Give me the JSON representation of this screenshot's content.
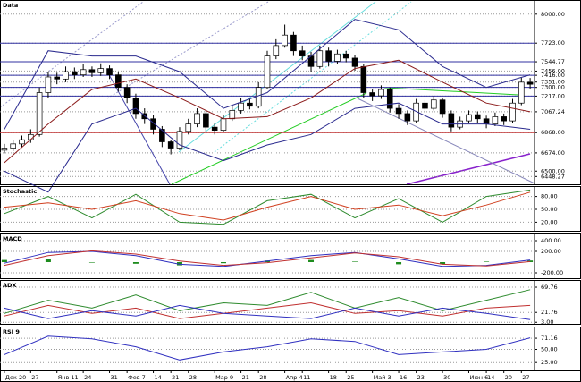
{
  "chart_data": [
    {
      "type": "candlestick",
      "title": "Data",
      "xlim": [
        -0.5,
        60.5
      ],
      "ylim": [
        6374,
        8118
      ],
      "xticks": [
        {
          "value": 0,
          "label": "Дек 20"
        },
        {
          "value": 3,
          "label": "27"
        },
        {
          "value": 6,
          "label": "Янв 11"
        },
        {
          "value": 9,
          "label": "24"
        },
        {
          "value": 12,
          "label": "31"
        },
        {
          "value": 14,
          "label": "Фев 7"
        },
        {
          "value": 17,
          "label": "14"
        },
        {
          "value": 19,
          "label": "21"
        },
        {
          "value": 21,
          "label": "28"
        },
        {
          "value": 24,
          "label": "Мар 9"
        },
        {
          "value": 27,
          "label": "21"
        },
        {
          "value": 29,
          "label": "28"
        },
        {
          "value": 32,
          "label": "Апр 4"
        },
        {
          "value": 34,
          "label": "11"
        },
        {
          "value": 37,
          "label": "18"
        },
        {
          "value": 39,
          "label": "25"
        },
        {
          "value": 42,
          "label": "Май 3"
        },
        {
          "value": 45,
          "label": "16"
        },
        {
          "value": 47,
          "label": "23"
        },
        {
          "value": 50,
          "label": "30"
        },
        {
          "value": 53,
          "label": "Июн 6"
        },
        {
          "value": 55,
          "label": "14"
        },
        {
          "value": 57,
          "label": "20"
        },
        {
          "value": 59,
          "label": "27"
        }
      ],
      "yticks": [
        {
          "value": 8000,
          "label": "8000.00"
        },
        {
          "value": 7723,
          "label": "7723.00"
        },
        {
          "value": 7544.77,
          "label": "7544.77"
        },
        {
          "value": 7456,
          "label": "7456.00"
        },
        {
          "value": 7416,
          "label": "7416.00"
        },
        {
          "value": 7351,
          "label": "7351.00"
        },
        {
          "value": 7300,
          "label": "7300.00"
        },
        {
          "value": 7217,
          "label": "7217.00"
        },
        {
          "value": 7067.24,
          "label": "7067.24"
        },
        {
          "value": 6868,
          "label": "6868.00"
        },
        {
          "value": 6674,
          "label": "6674.00"
        },
        {
          "value": 6500,
          "label": "6500.00"
        },
        {
          "value": 6448.27,
          "label": "6448.27"
        }
      ],
      "up_color": "#ffffff",
      "down_color": "#000000",
      "candles": [
        [
          6700,
          6760,
          6670,
          6720
        ],
        [
          6720,
          6800,
          6690,
          6760
        ],
        [
          6760,
          6840,
          6730,
          6800
        ],
        [
          6800,
          6900,
          6770,
          6850
        ],
        [
          6850,
          7300,
          6830,
          7250
        ],
        [
          7250,
          7450,
          7200,
          7400
        ],
        [
          7400,
          7440,
          7330,
          7380
        ],
        [
          7380,
          7500,
          7350,
          7450
        ],
        [
          7450,
          7490,
          7380,
          7420
        ],
        [
          7420,
          7520,
          7400,
          7470
        ],
        [
          7470,
          7500,
          7400,
          7440
        ],
        [
          7440,
          7530,
          7410,
          7480
        ],
        [
          7480,
          7510,
          7380,
          7420
        ],
        [
          7420,
          7450,
          7260,
          7300
        ],
        [
          7300,
          7330,
          7150,
          7200
        ],
        [
          7200,
          7240,
          7000,
          7050
        ],
        [
          7050,
          7100,
          6950,
          7000
        ],
        [
          7000,
          7040,
          6850,
          6900
        ],
        [
          6900,
          6930,
          6730,
          6780
        ],
        [
          6780,
          6800,
          6660,
          6720
        ],
        [
          6720,
          6920,
          6700,
          6880
        ],
        [
          6880,
          7000,
          6850,
          6950
        ],
        [
          6950,
          7100,
          6920,
          7050
        ],
        [
          7050,
          7080,
          6880,
          6920
        ],
        [
          6920,
          6960,
          6850,
          6890
        ],
        [
          6890,
          7040,
          6870,
          7000
        ],
        [
          7000,
          7120,
          6980,
          7080
        ],
        [
          7080,
          7200,
          7050,
          7150
        ],
        [
          7150,
          7190,
          7090,
          7120
        ],
        [
          7120,
          7350,
          7100,
          7300
        ],
        [
          7300,
          7650,
          7280,
          7600
        ],
        [
          7600,
          7760,
          7570,
          7700
        ],
        [
          7700,
          7900,
          7680,
          7800
        ],
        [
          7800,
          7830,
          7600,
          7650
        ],
        [
          7650,
          7700,
          7560,
          7600
        ],
        [
          7600,
          7640,
          7450,
          7500
        ],
        [
          7500,
          7700,
          7480,
          7650
        ],
        [
          7650,
          7680,
          7500,
          7550
        ],
        [
          7550,
          7660,
          7520,
          7620
        ],
        [
          7620,
          7650,
          7540,
          7580
        ],
        [
          7580,
          7610,
          7460,
          7500
        ],
        [
          7500,
          7520,
          7200,
          7250
        ],
        [
          7250,
          7280,
          7170,
          7220
        ],
        [
          7220,
          7320,
          7190,
          7280
        ],
        [
          7280,
          7300,
          7060,
          7100
        ],
        [
          7100,
          7140,
          7000,
          7050
        ],
        [
          7050,
          7080,
          6940,
          6980
        ],
        [
          6980,
          7190,
          6960,
          7150
        ],
        [
          7150,
          7180,
          7060,
          7100
        ],
        [
          7100,
          7220,
          7080,
          7180
        ],
        [
          7180,
          7200,
          7010,
          7050
        ],
        [
          7050,
          7080,
          6880,
          6920
        ],
        [
          6920,
          7020,
          6900,
          6980
        ],
        [
          6980,
          7080,
          6960,
          7040
        ],
        [
          7040,
          7070,
          6960,
          7000
        ],
        [
          7000,
          7030,
          6910,
          6950
        ],
        [
          6950,
          7060,
          6930,
          7020
        ],
        [
          7020,
          7050,
          6940,
          6980
        ],
        [
          6980,
          7190,
          6960,
          7150
        ],
        [
          7150,
          7400,
          7130,
          7350
        ],
        [
          7350,
          7390,
          7280,
          7330
        ]
      ],
      "x": [
        0,
        5,
        10,
        15,
        20,
        25,
        30,
        35,
        40,
        45,
        50,
        55,
        60
      ],
      "series": [
        {
          "color": "#8b1a1a",
          "values": [
            6580,
            6950,
            7280,
            7380,
            7200,
            7000,
            7020,
            7200,
            7480,
            7560,
            7350,
            7150,
            7067
          ]
        },
        {
          "color": "#2b2b8f",
          "values": [
            6900,
            7650,
            7600,
            7600,
            7450,
            7100,
            7250,
            7600,
            7950,
            7850,
            7500,
            7300,
            7420
          ]
        },
        {
          "color": "#2b2b8f",
          "values": [
            6500,
            6300,
            6950,
            7100,
            6750,
            6600,
            6750,
            6850,
            7100,
            7150,
            6950,
            6950,
            6900
          ]
        }
      ],
      "hlines": [
        {
          "value": 7723,
          "color": "#3030a0"
        },
        {
          "value": 7544.77,
          "color": "#3030a0"
        },
        {
          "value": 7416,
          "color": "#3030a0"
        },
        {
          "value": 7300,
          "color": "#3030a0"
        },
        {
          "value": 7217,
          "color": "#3030a0"
        },
        {
          "value": 6868,
          "color": "#c03030"
        }
      ]
    },
    {
      "type": "line",
      "title": "Stochastic",
      "xlim": [
        -0.5,
        60.5
      ],
      "ylim": [
        0,
        100
      ],
      "yticks": [
        {
          "value": 80,
          "label": "80.00"
        },
        {
          "value": 50,
          "label": "50.00"
        },
        {
          "value": 20,
          "label": "20.00"
        }
      ],
      "x": [
        0,
        5,
        10,
        15,
        20,
        25,
        30,
        35,
        40,
        45,
        50,
        55,
        60
      ],
      "series": [
        {
          "color": "#2e8b2e",
          "values": [
            40,
            80,
            30,
            85,
            20,
            15,
            70,
            85,
            30,
            75,
            20,
            80,
            95
          ]
        },
        {
          "color": "#d04020",
          "values": [
            55,
            65,
            50,
            70,
            40,
            25,
            55,
            80,
            50,
            60,
            35,
            60,
            90
          ]
        }
      ]
    },
    {
      "type": "line",
      "title": "MACD",
      "xlim": [
        -0.5,
        60.5
      ],
      "ylim": [
        -300,
        500
      ],
      "yticks": [
        {
          "value": 400,
          "label": "400.00"
        },
        {
          "value": 200,
          "label": "200.00"
        },
        {
          "value": -200,
          "label": "-200.00"
        }
      ],
      "x": [
        0,
        5,
        10,
        15,
        20,
        25,
        30,
        35,
        40,
        45,
        50,
        55,
        60
      ],
      "histogram": {
        "color": "#1e8c1e",
        "values": [
          40,
          60,
          -10,
          -30,
          -60,
          -20,
          30,
          40,
          10,
          -40,
          -40,
          10,
          30
        ]
      },
      "series": [
        {
          "color": "#3030c0",
          "values": [
            -20,
            180,
            200,
            120,
            -40,
            -80,
            20,
            120,
            180,
            60,
            -80,
            -60,
            40
          ]
        },
        {
          "color": "#c03030",
          "values": [
            -60,
            120,
            210,
            150,
            20,
            -60,
            -10,
            80,
            170,
            100,
            -40,
            -70,
            10
          ]
        }
      ]
    },
    {
      "type": "line",
      "title": "ADX",
      "xlim": [
        -0.5,
        60.5
      ],
      "ylim": [
        0,
        80
      ],
      "yticks": [
        {
          "value": 69.76,
          "label": "69.76"
        },
        {
          "value": 21.76,
          "label": "21.76"
        },
        {
          "value": 3,
          "label": "3.00"
        }
      ],
      "x": [
        0,
        5,
        10,
        15,
        20,
        25,
        30,
        35,
        40,
        45,
        50,
        55,
        60
      ],
      "series": [
        {
          "color": "#2e8b2e",
          "values": [
            20,
            45,
            30,
            55,
            25,
            40,
            35,
            60,
            30,
            50,
            25,
            45,
            65
          ]
        },
        {
          "color": "#c03030",
          "values": [
            15,
            35,
            20,
            30,
            10,
            20,
            30,
            40,
            20,
            25,
            15,
            30,
            35
          ]
        },
        {
          "color": "#3030c0",
          "values": [
            30,
            10,
            25,
            15,
            35,
            20,
            15,
            10,
            30,
            15,
            30,
            20,
            8
          ]
        }
      ]
    },
    {
      "type": "line",
      "title": "RSI 9",
      "xlim": [
        -0.5,
        60.5
      ],
      "ylim": [
        10,
        90
      ],
      "yticks": [
        {
          "value": 71.16,
          "label": "71.16"
        },
        {
          "value": 50,
          "label": "50.00"
        },
        {
          "value": 25,
          "label": "25.00"
        }
      ],
      "x": [
        0,
        5,
        10,
        15,
        20,
        25,
        30,
        35,
        40,
        45,
        50,
        55,
        60
      ],
      "series": [
        {
          "color": "#3030c0",
          "values": [
            40,
            75,
            70,
            55,
            30,
            45,
            55,
            70,
            65,
            40,
            45,
            50,
            72
          ]
        }
      ]
    }
  ]
}
